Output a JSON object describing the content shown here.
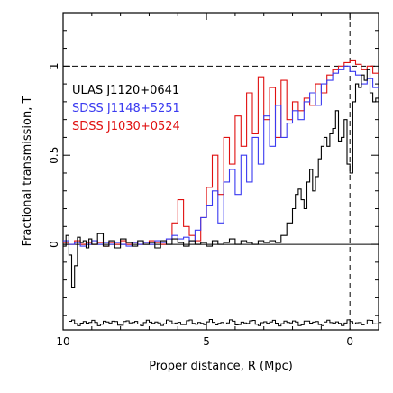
{
  "chart_data": {
    "type": "line",
    "title": "",
    "xlabel": "Proper distance, R (Mpc)",
    "ylabel": "Fractional transmission, T",
    "xlim": [
      10,
      -1
    ],
    "ylim": [
      -0.48,
      1.3
    ],
    "x_ticks": [
      "10",
      "5",
      "0"
    ],
    "x_tick_values": [
      10,
      5,
      0
    ],
    "y_ticks": [
      "0",
      "0.5",
      "1"
    ],
    "y_tick_values": [
      0,
      0.5,
      1
    ],
    "reference_lines": {
      "y_one": 1,
      "y_zero": 0,
      "x_zero": 0
    },
    "legend_position": "top-left",
    "series": [
      {
        "name": "ULAS J1120+0641",
        "color": "#000000",
        "x": [
          10,
          9.9,
          9.8,
          9.7,
          9.6,
          9.5,
          9.4,
          9.3,
          9.2,
          9.1,
          9,
          8.8,
          8.6,
          8.4,
          8.2,
          8,
          7.8,
          7.6,
          7.4,
          7.2,
          7,
          6.8,
          6.6,
          6.4,
          6.2,
          6,
          5.8,
          5.6,
          5.4,
          5.2,
          5,
          4.8,
          4.6,
          4.4,
          4.2,
          4,
          3.8,
          3.6,
          3.4,
          3.2,
          3,
          2.8,
          2.6,
          2.4,
          2.2,
          2,
          1.9,
          1.8,
          1.7,
          1.6,
          1.5,
          1.4,
          1.3,
          1.2,
          1.1,
          1,
          0.9,
          0.8,
          0.7,
          0.6,
          0.5,
          0.4,
          0.3,
          0.2,
          0.1,
          0,
          -0.1,
          -0.2,
          -0.3,
          -0.4,
          -0.5,
          -0.6,
          -0.7,
          -0.8,
          -0.9
        ],
        "y": [
          -0.01,
          0.05,
          -0.06,
          -0.24,
          -0.12,
          0.04,
          0.01,
          0.02,
          -0.02,
          0.03,
          0,
          0.06,
          -0.01,
          0.02,
          -0.02,
          0.03,
          0.01,
          -0.01,
          0.02,
          0,
          0.01,
          -0.02,
          0.02,
          0,
          0.03,
          0.01,
          -0.01,
          0.02,
          0,
          0.01,
          -0.01,
          0.02,
          0,
          0.01,
          0.03,
          0,
          0.02,
          0.01,
          0,
          0.02,
          0.01,
          0.02,
          0.01,
          0.05,
          0.12,
          0.2,
          0.28,
          0.31,
          0.25,
          0.2,
          0.35,
          0.42,
          0.3,
          0.38,
          0.48,
          0.55,
          0.6,
          0.55,
          0.62,
          0.65,
          0.75,
          0.58,
          0.6,
          0.7,
          0.45,
          0.4,
          0.8,
          0.9,
          0.88,
          0.95,
          0.92,
          0.98,
          0.85,
          0.8,
          0.82
        ]
      },
      {
        "name": "SDSS J1148+5251",
        "color": "#3a3af0",
        "x": [
          10,
          9.8,
          9.6,
          9.4,
          9.2,
          9,
          8.8,
          8.6,
          8.4,
          8.2,
          8,
          7.8,
          7.6,
          7.4,
          7.2,
          7,
          6.8,
          6.6,
          6.4,
          6.2,
          6,
          5.8,
          5.6,
          5.4,
          5.2,
          5,
          4.8,
          4.6,
          4.4,
          4.2,
          4,
          3.8,
          3.6,
          3.4,
          3.2,
          3,
          2.8,
          2.6,
          2.4,
          2.2,
          2,
          1.8,
          1.6,
          1.4,
          1.2,
          1,
          0.8,
          0.6,
          0.4,
          0.2,
          0,
          -0.2,
          -0.4,
          -0.6,
          -0.8
        ],
        "y": [
          0.02,
          0,
          0.01,
          -0.01,
          0,
          0.02,
          0,
          0.01,
          0,
          0.01,
          0,
          -0.01,
          0.01,
          0,
          0.01,
          0,
          0.02,
          0.01,
          0.03,
          0.05,
          0.03,
          0.04,
          0.02,
          0.08,
          0.15,
          0.22,
          0.3,
          0.12,
          0.35,
          0.42,
          0.28,
          0.5,
          0.35,
          0.6,
          0.45,
          0.72,
          0.55,
          0.78,
          0.6,
          0.68,
          0.75,
          0.7,
          0.8,
          0.85,
          0.78,
          0.9,
          0.92,
          0.96,
          0.98,
          1.0,
          0.97,
          0.95,
          0.9,
          0.93,
          0.88
        ]
      },
      {
        "name": "SDSS J1030+0524",
        "color": "#e01010",
        "x": [
          10,
          9.8,
          9.6,
          9.4,
          9.2,
          9,
          8.8,
          8.6,
          8.4,
          8.2,
          8,
          7.8,
          7.6,
          7.4,
          7.2,
          7,
          6.8,
          6.6,
          6.4,
          6.2,
          6,
          5.8,
          5.6,
          5.4,
          5.2,
          5,
          4.8,
          4.6,
          4.4,
          4.2,
          4,
          3.8,
          3.6,
          3.4,
          3.2,
          3,
          2.8,
          2.6,
          2.4,
          2.2,
          2,
          1.8,
          1.6,
          1.4,
          1.2,
          1,
          0.8,
          0.6,
          0.4,
          0.2,
          0,
          -0.2,
          -0.4,
          -0.6,
          -0.8
        ],
        "y": [
          0.01,
          0,
          0.02,
          0,
          0.01,
          0,
          0.01,
          -0.01,
          0.01,
          0,
          0.02,
          0,
          0.01,
          0,
          0.01,
          0.02,
          0.01,
          0,
          0.03,
          0.12,
          0.25,
          0.1,
          0.05,
          0.02,
          0.15,
          0.32,
          0.5,
          0.28,
          0.6,
          0.45,
          0.72,
          0.55,
          0.85,
          0.62,
          0.94,
          0.7,
          0.88,
          0.6,
          0.92,
          0.7,
          0.8,
          0.75,
          0.82,
          0.78,
          0.9,
          0.85,
          0.95,
          0.98,
          1.0,
          1.02,
          1.03,
          1.01,
          0.98,
          1.0,
          0.96
        ]
      }
    ]
  }
}
